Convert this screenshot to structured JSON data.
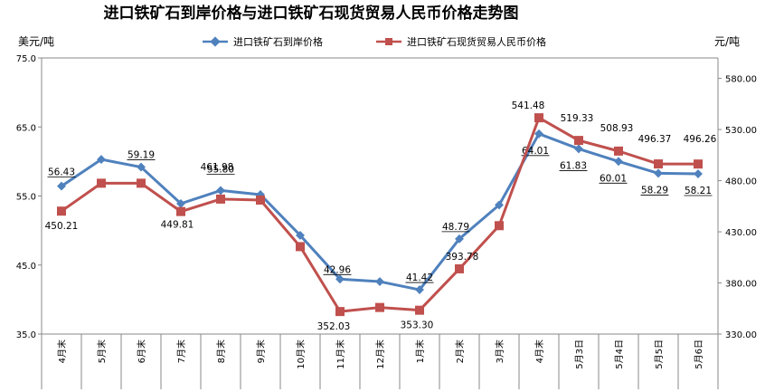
{
  "chart_data": {
    "type": "line",
    "title": "进口铁矿石到岸价格与进口铁矿石现货贸易人民币价格走势图",
    "y_left_unit": "美元/吨",
    "y_right_unit": "元/吨",
    "categories": [
      "4月末",
      "5月末",
      "6月末",
      "7月末",
      "8月末",
      "9月末",
      "10月末",
      "11月末",
      "12月末",
      "1月末",
      "2月末",
      "3月末",
      "4月末",
      "5月3日",
      "5月4日",
      "5月5日",
      "5月6日"
    ],
    "y_left": {
      "min": 35,
      "max": 75,
      "ticks": [
        "35.0",
        "45.0",
        "55.0",
        "65.0",
        "75.0"
      ],
      "tick_values": [
        35,
        45,
        55,
        65,
        75
      ]
    },
    "y_right": {
      "min": 330,
      "max": 600,
      "ticks": [
        "330.00",
        "380.00",
        "430.00",
        "480.00",
        "530.00",
        "580.00"
      ],
      "tick_values": [
        330,
        380,
        430,
        480,
        530,
        580
      ]
    },
    "series": [
      {
        "name": "进口铁矿石到岸价格",
        "axis": "left",
        "color": "#4f81bd",
        "marker": "diamond",
        "values": [
          56.43,
          60.3,
          59.19,
          53.9,
          55.8,
          55.2,
          49.3,
          42.96,
          42.6,
          41.42,
          48.79,
          53.7,
          64.01,
          61.83,
          60.01,
          58.29,
          58.21
        ],
        "labels": [
          "56.43",
          null,
          "59.19",
          null,
          "55.80",
          null,
          null,
          "42.96",
          null,
          "41.42",
          "48.79",
          null,
          "64.01",
          "61.83",
          "60.01",
          "58.29",
          "58.21"
        ]
      },
      {
        "name": "进口铁矿石现货贸易人民币价格",
        "axis": "right",
        "color": "#c0504d",
        "marker": "square",
        "values": [
          450.21,
          477.5,
          477.5,
          449.81,
          461.98,
          461.0,
          415.5,
          352.03,
          356.0,
          353.3,
          393.78,
          436.0,
          541.48,
          519.33,
          508.93,
          496.37,
          496.26
        ],
        "labels": [
          "450.21",
          null,
          null,
          "449.81",
          "461.98",
          null,
          null,
          "352.03",
          null,
          "353.30",
          "393.78",
          null,
          "541.48",
          "519.33",
          "508.93",
          "496.37",
          "496.26"
        ]
      }
    ],
    "legend_position": "top"
  }
}
